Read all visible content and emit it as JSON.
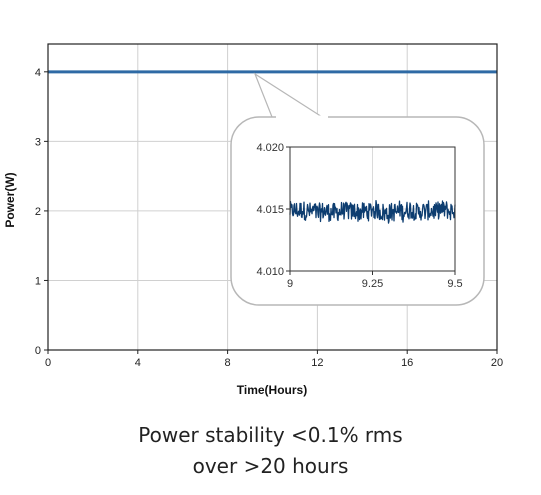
{
  "chart_data": [
    {
      "type": "line",
      "xlabel": "Time(Hours)",
      "ylabel": "Power(W)",
      "xlim": [
        0,
        20
      ],
      "ylim": [
        0,
        4.4
      ],
      "x_ticks": [
        "0",
        "4",
        "8",
        "12",
        "16",
        "20"
      ],
      "y_ticks": [
        "0",
        "1",
        "2",
        "3",
        "4"
      ],
      "grid": true,
      "series": [
        {
          "x": [
            0,
            2,
            4,
            6,
            8,
            10,
            12,
            14,
            16,
            18,
            20
          ],
          "values": [
            4.0,
            4.0,
            4.0,
            4.0,
            4.0,
            4.0,
            4.0,
            4.0,
            4.0,
            4.0,
            4.0
          ]
        }
      ],
      "color": "#2e6aa5"
    },
    {
      "type": "line",
      "role": "inset zoom of main chart near t = 9 h",
      "xlim": [
        9,
        9.5
      ],
      "ylim": [
        4.01,
        4.02
      ],
      "x_ticks": [
        "9",
        "9.25",
        "9.5"
      ],
      "y_ticks": [
        "4.020",
        "4.015",
        "4.010"
      ],
      "mean": 4.0148,
      "noise_peak_to_peak": 0.0015,
      "color": "#0d3d70"
    }
  ],
  "caption": {
    "line1": "Power stability <0.1% rms",
    "line2": "over >20 hours"
  }
}
